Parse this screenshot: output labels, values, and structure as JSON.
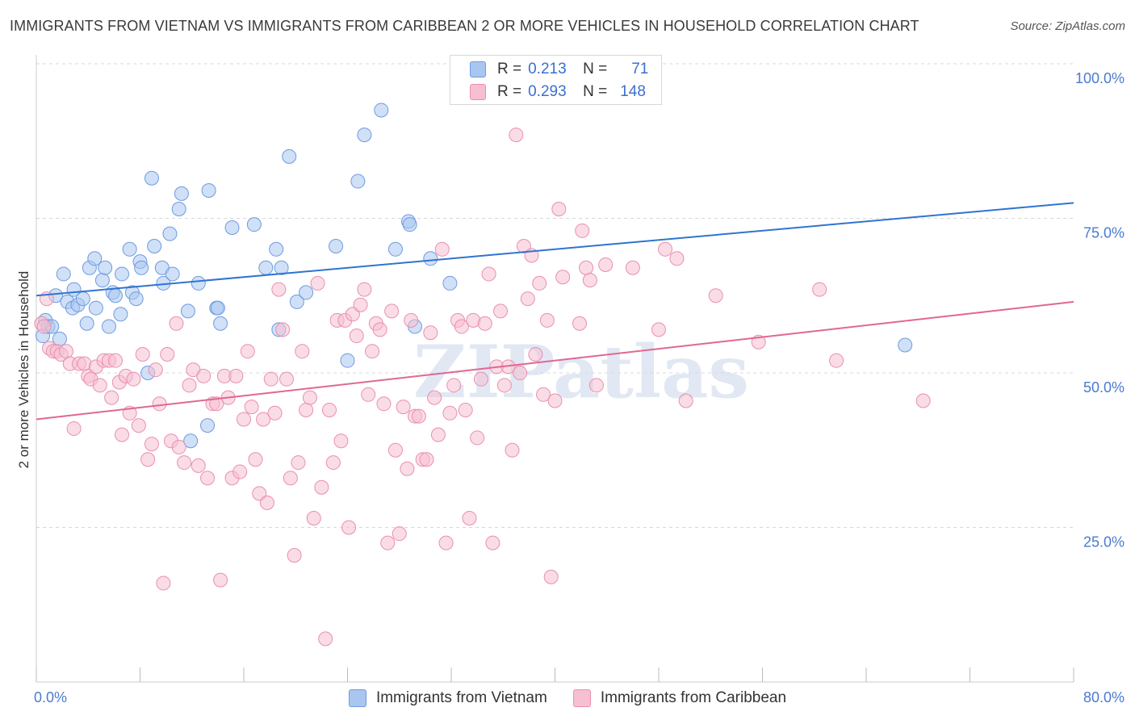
{
  "title": "IMMIGRANTS FROM VIETNAM VS IMMIGRANTS FROM CARIBBEAN 2 OR MORE VEHICLES IN HOUSEHOLD CORRELATION CHART",
  "source": "Source: ZipAtlas.com",
  "watermark": "ZIPatlas",
  "legend_top": {
    "rows": [
      {
        "r_label": "R =",
        "r_value": "0.213",
        "n_label": "N =",
        "n_value": "71"
      },
      {
        "r_label": "R =",
        "r_value": "0.293",
        "n_label": "N =",
        "n_value": "148"
      }
    ]
  },
  "colors": {
    "vietnam_fill": "#a9c6f0",
    "vietnam_stroke": "#6d9be0",
    "vietnam_line": "#2f74d0",
    "caribbean_fill": "#f6bfd2",
    "caribbean_stroke": "#e98fb0",
    "caribbean_line": "#e0688f",
    "tick_text": "#4a7bd0",
    "grid": "#d8d8d8"
  },
  "chart_data": {
    "type": "scatter",
    "title": "IMMIGRANTS FROM VIETNAM VS IMMIGRANTS FROM CARIBBEAN 2 OR MORE VEHICLES IN HOUSEHOLD CORRELATION CHART",
    "xlabel": "",
    "ylabel": "2 or more Vehicles in Household",
    "xlim": [
      0,
      80
    ],
    "ylim": [
      0,
      100
    ],
    "x_tick_labels": [
      "0.0%",
      "80.0%"
    ],
    "y_ticks": [
      25,
      50,
      75,
      100
    ],
    "y_tick_labels": [
      "25.0%",
      "50.0%",
      "75.0%",
      "100.0%"
    ],
    "grid": true,
    "series": [
      {
        "name": "Immigrants from Vietnam",
        "color": "#6d9be0",
        "R": 0.213,
        "N": 71,
        "trendline": {
          "x": [
            0,
            80
          ],
          "y": [
            62.5,
            77.5
          ]
        },
        "points": [
          [
            0.5,
            56
          ],
          [
            0.7,
            58.5
          ],
          [
            0.9,
            57.5
          ],
          [
            1.2,
            57.5
          ],
          [
            1.8,
            55.5
          ],
          [
            1.5,
            62.5
          ],
          [
            2.1,
            66
          ],
          [
            2.4,
            61.5
          ],
          [
            2.8,
            60.5
          ],
          [
            2.9,
            63.5
          ],
          [
            3.2,
            61
          ],
          [
            3.6,
            62
          ],
          [
            3.9,
            58
          ],
          [
            4.1,
            67
          ],
          [
            4.5,
            68.5
          ],
          [
            4.6,
            60.5
          ],
          [
            5.1,
            65
          ],
          [
            5.3,
            67
          ],
          [
            5.6,
            57.5
          ],
          [
            5.9,
            63
          ],
          [
            6.1,
            62.5
          ],
          [
            6.5,
            59.5
          ],
          [
            6.6,
            66
          ],
          [
            7.2,
            70
          ],
          [
            7.4,
            63
          ],
          [
            7.7,
            62
          ],
          [
            8.0,
            68
          ],
          [
            8.1,
            67
          ],
          [
            8.6,
            50
          ],
          [
            8.9,
            81.5
          ],
          [
            9.1,
            70.5
          ],
          [
            9.7,
            67
          ],
          [
            9.8,
            64.5
          ],
          [
            10.3,
            72.5
          ],
          [
            10.5,
            66
          ],
          [
            11.0,
            76.5
          ],
          [
            11.2,
            79
          ],
          [
            11.7,
            60
          ],
          [
            11.9,
            39
          ],
          [
            12.5,
            64.5
          ],
          [
            13.3,
            79.5
          ],
          [
            13.2,
            41.5
          ],
          [
            13.9,
            60.5
          ],
          [
            14.0,
            60.5
          ],
          [
            14.2,
            58
          ],
          [
            15.1,
            73.5
          ],
          [
            16.8,
            74
          ],
          [
            17.7,
            67
          ],
          [
            18.5,
            70
          ],
          [
            18.7,
            57
          ],
          [
            18.9,
            67
          ],
          [
            19.5,
            85
          ],
          [
            20.1,
            61.5
          ],
          [
            20.8,
            63
          ],
          [
            23.1,
            70.5
          ],
          [
            24.0,
            52
          ],
          [
            24.8,
            81
          ],
          [
            25.3,
            88.5
          ],
          [
            26.6,
            92.5
          ],
          [
            27.7,
            70
          ],
          [
            28.7,
            74.5
          ],
          [
            28.8,
            74
          ],
          [
            29.2,
            57.5
          ],
          [
            30.4,
            68.5
          ],
          [
            31.9,
            64.5
          ],
          [
            67.0,
            54.5
          ]
        ]
      },
      {
        "name": "Immigrants from Caribbean",
        "color": "#e98fb0",
        "R": 0.293,
        "N": 148,
        "trendline": {
          "x": [
            0,
            80
          ],
          "y": [
            42.5,
            61.5
          ]
        },
        "points": [
          [
            0.4,
            58
          ],
          [
            0.6,
            57.5
          ],
          [
            0.8,
            62
          ],
          [
            1.0,
            54
          ],
          [
            1.3,
            53.5
          ],
          [
            1.6,
            53.5
          ],
          [
            1.9,
            53
          ],
          [
            2.3,
            53.5
          ],
          [
            2.6,
            51.5
          ],
          [
            2.9,
            41
          ],
          [
            3.3,
            51.5
          ],
          [
            3.7,
            51.5
          ],
          [
            4.0,
            49.5
          ],
          [
            4.2,
            49
          ],
          [
            4.6,
            51
          ],
          [
            4.9,
            48
          ],
          [
            5.2,
            52
          ],
          [
            5.6,
            52
          ],
          [
            5.8,
            46
          ],
          [
            6.1,
            52
          ],
          [
            6.4,
            48.5
          ],
          [
            6.6,
            40
          ],
          [
            6.9,
            49.5
          ],
          [
            7.2,
            43.5
          ],
          [
            7.5,
            49
          ],
          [
            7.9,
            41.5
          ],
          [
            8.2,
            53
          ],
          [
            8.6,
            36
          ],
          [
            8.9,
            38.5
          ],
          [
            9.2,
            50.5
          ],
          [
            9.5,
            45
          ],
          [
            9.8,
            16
          ],
          [
            10.1,
            53
          ],
          [
            10.4,
            39
          ],
          [
            10.8,
            58
          ],
          [
            11.0,
            38
          ],
          [
            11.4,
            35.5
          ],
          [
            11.8,
            48
          ],
          [
            12.1,
            50.5
          ],
          [
            12.5,
            35
          ],
          [
            12.9,
            49.5
          ],
          [
            13.2,
            33
          ],
          [
            13.6,
            45
          ],
          [
            13.9,
            45
          ],
          [
            14.2,
            16.5
          ],
          [
            14.5,
            49.5
          ],
          [
            14.8,
            46
          ],
          [
            15.1,
            33
          ],
          [
            15.4,
            49.5
          ],
          [
            15.7,
            34
          ],
          [
            16.0,
            42.5
          ],
          [
            16.3,
            53.5
          ],
          [
            16.6,
            44.5
          ],
          [
            16.9,
            36
          ],
          [
            17.2,
            30.5
          ],
          [
            17.5,
            42.5
          ],
          [
            17.8,
            29
          ],
          [
            18.1,
            49
          ],
          [
            18.4,
            43.5
          ],
          [
            18.7,
            63.5
          ],
          [
            19.0,
            57
          ],
          [
            19.3,
            49
          ],
          [
            19.6,
            33
          ],
          [
            19.9,
            20.5
          ],
          [
            20.2,
            35.5
          ],
          [
            20.5,
            53.5
          ],
          [
            20.8,
            44
          ],
          [
            21.1,
            46
          ],
          [
            21.4,
            26.5
          ],
          [
            21.7,
            64.5
          ],
          [
            22.0,
            31.5
          ],
          [
            22.3,
            7
          ],
          [
            22.6,
            44
          ],
          [
            22.9,
            35.5
          ],
          [
            23.2,
            58.5
          ],
          [
            23.5,
            39
          ],
          [
            23.8,
            58.5
          ],
          [
            24.1,
            25
          ],
          [
            24.4,
            59.5
          ],
          [
            24.7,
            56
          ],
          [
            25.0,
            61
          ],
          [
            25.3,
            63.5
          ],
          [
            25.6,
            46.5
          ],
          [
            25.9,
            53.5
          ],
          [
            26.2,
            58
          ],
          [
            26.5,
            57
          ],
          [
            26.8,
            45
          ],
          [
            27.1,
            22.5
          ],
          [
            27.4,
            60
          ],
          [
            27.7,
            37.5
          ],
          [
            28.0,
            24
          ],
          [
            28.3,
            44.5
          ],
          [
            28.6,
            34.5
          ],
          [
            28.9,
            58.5
          ],
          [
            29.2,
            43
          ],
          [
            29.5,
            43
          ],
          [
            29.8,
            36
          ],
          [
            30.1,
            36
          ],
          [
            30.4,
            56.5
          ],
          [
            30.7,
            46
          ],
          [
            31.0,
            40
          ],
          [
            31.3,
            70
          ],
          [
            31.6,
            22.5
          ],
          [
            31.9,
            43.5
          ],
          [
            32.2,
            48
          ],
          [
            32.5,
            58.5
          ],
          [
            32.8,
            57.5
          ],
          [
            33.1,
            44
          ],
          [
            33.4,
            26.5
          ],
          [
            33.7,
            58.5
          ],
          [
            34.0,
            39.5
          ],
          [
            34.3,
            49
          ],
          [
            34.6,
            58
          ],
          [
            34.9,
            66
          ],
          [
            35.2,
            22.5
          ],
          [
            35.5,
            51
          ],
          [
            35.8,
            60
          ],
          [
            36.1,
            48
          ],
          [
            36.4,
            51
          ],
          [
            36.7,
            37.5
          ],
          [
            37.0,
            88.5
          ],
          [
            37.3,
            50
          ],
          [
            37.6,
            70.5
          ],
          [
            37.9,
            62
          ],
          [
            38.2,
            69
          ],
          [
            38.5,
            53
          ],
          [
            38.8,
            64.5
          ],
          [
            39.1,
            46.5
          ],
          [
            39.4,
            58.5
          ],
          [
            39.7,
            17
          ],
          [
            40.0,
            45.5
          ],
          [
            40.3,
            76.5
          ],
          [
            40.6,
            65.5
          ],
          [
            41.9,
            58
          ],
          [
            42.1,
            73
          ],
          [
            42.4,
            67
          ],
          [
            42.7,
            65
          ],
          [
            43.2,
            48
          ],
          [
            43.9,
            67.5
          ],
          [
            46.0,
            67
          ],
          [
            48.0,
            57
          ],
          [
            48.5,
            70
          ],
          [
            49.4,
            68.5
          ],
          [
            50.1,
            45.5
          ],
          [
            52.4,
            62.5
          ],
          [
            55.7,
            55
          ],
          [
            60.4,
            63.5
          ],
          [
            61.7,
            52
          ],
          [
            68.4,
            45.5
          ]
        ]
      }
    ]
  },
  "legend_bottom": {
    "items": [
      {
        "label": "Immigrants from Vietnam"
      },
      {
        "label": "Immigrants from Caribbean"
      }
    ]
  }
}
